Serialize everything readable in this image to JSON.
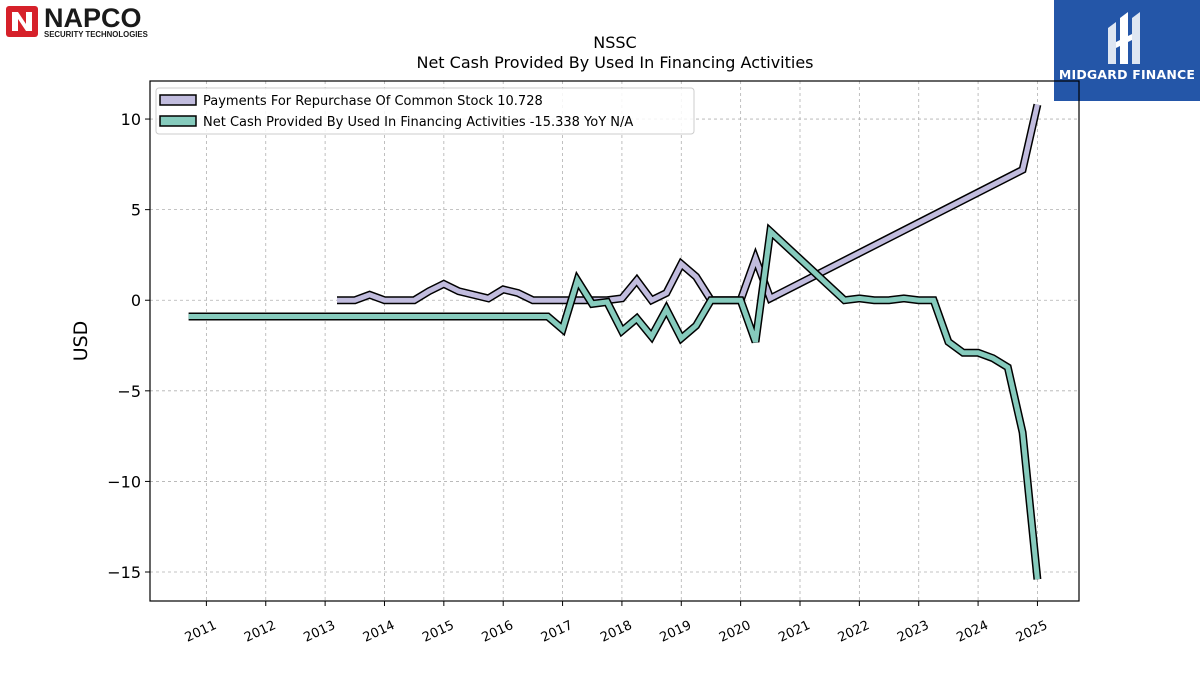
{
  "logos": {
    "left": {
      "name": "NAPCO",
      "tagline": "SECURITY TECHNOLOGIES",
      "color": "#d6212a"
    },
    "right": {
      "name": "MIDGARD FINANCE",
      "color": "#2456a8"
    }
  },
  "chart_data": {
    "type": "line",
    "title": "NSSC",
    "subtitle": "Net Cash Provided By Used In Financing Activities",
    "xlabel": "",
    "ylabel": "USD",
    "xlim": [
      2010.05,
      2025.7
    ],
    "ylim": [
      -16.6,
      12.1
    ],
    "x_ticks": [
      "2011",
      "2012",
      "2013",
      "2014",
      "2015",
      "2016",
      "2017",
      "2018",
      "2019",
      "2020",
      "2021",
      "2022",
      "2023",
      "2024",
      "2025"
    ],
    "y_ticks": [
      10,
      5,
      0,
      -5,
      -10,
      -15
    ],
    "y_tick_labels": [
      "10",
      "5",
      "0",
      "−5",
      "−10",
      "−15"
    ],
    "grid": true,
    "legend_placement": "top-left",
    "series": [
      {
        "name": "Payments For Repurchase Of Common Stock",
        "legend_label": "Payments For Repurchase Of Common Stock  10.728",
        "color": "#c1bcde",
        "points": [
          [
            2013.2,
            0.0
          ],
          [
            2013.5,
            0.0
          ],
          [
            2013.75,
            0.3
          ],
          [
            2014.0,
            0.0
          ],
          [
            2014.5,
            0.0
          ],
          [
            2014.75,
            0.5
          ],
          [
            2015.0,
            0.9
          ],
          [
            2015.25,
            0.5
          ],
          [
            2015.75,
            0.1
          ],
          [
            2016.0,
            0.6
          ],
          [
            2016.25,
            0.4
          ],
          [
            2016.5,
            0.0
          ],
          [
            2017.0,
            0.0
          ],
          [
            2017.25,
            0.0
          ],
          [
            2017.75,
            0.0
          ],
          [
            2018.0,
            0.1
          ],
          [
            2018.25,
            1.1
          ],
          [
            2018.5,
            0.0
          ],
          [
            2018.75,
            0.4
          ],
          [
            2019.0,
            2.0
          ],
          [
            2019.25,
            1.3
          ],
          [
            2019.5,
            0.0
          ],
          [
            2020.0,
            0.0
          ],
          [
            2020.25,
            2.3
          ],
          [
            2020.5,
            0.1
          ],
          [
            2024.75,
            7.2
          ],
          [
            2025.0,
            10.8
          ]
        ]
      },
      {
        "name": "Net Cash Provided By Used In Financing Activities",
        "legend_label": "Net Cash Provided By Used In Financing Activities  -15.338 YoY N/A",
        "color": "#86cbbd",
        "points": [
          [
            2010.7,
            -0.9
          ],
          [
            2016.75,
            -0.9
          ],
          [
            2017.0,
            -1.6
          ],
          [
            2017.25,
            1.1
          ],
          [
            2017.5,
            -0.2
          ],
          [
            2017.75,
            -0.1
          ],
          [
            2018.0,
            -1.7
          ],
          [
            2018.25,
            -1.0
          ],
          [
            2018.5,
            -2.0
          ],
          [
            2018.75,
            -0.5
          ],
          [
            2019.0,
            -2.1
          ],
          [
            2019.25,
            -1.4
          ],
          [
            2019.5,
            0.0
          ],
          [
            2020.0,
            0.0
          ],
          [
            2020.25,
            -2.3
          ],
          [
            2020.5,
            3.8
          ],
          [
            2021.75,
            0.0
          ],
          [
            2022.0,
            0.1
          ],
          [
            2022.25,
            0.0
          ],
          [
            2022.5,
            0.0
          ],
          [
            2022.75,
            0.1
          ],
          [
            2023.0,
            0.0
          ],
          [
            2023.25,
            0.0
          ],
          [
            2023.5,
            -2.3
          ],
          [
            2023.75,
            -2.9
          ],
          [
            2024.0,
            -2.9
          ],
          [
            2024.25,
            -3.2
          ],
          [
            2024.5,
            -3.7
          ],
          [
            2024.75,
            -7.3
          ],
          [
            2025.0,
            -15.4
          ]
        ]
      }
    ]
  }
}
